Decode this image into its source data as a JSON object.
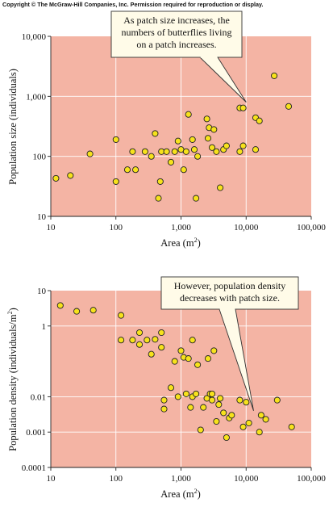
{
  "copyright": "Copyright © The McGraw-Hill Companies, Inc. Permission required for reproduction or display.",
  "chart_data": [
    {
      "type": "scatter",
      "title": "",
      "xlabel": "Area (m²)",
      "xlabel_parts": [
        "Area (m",
        "2",
        ")"
      ],
      "ylabel": "Population size (individuals)",
      "xscale": "log",
      "yscale": "log",
      "xlim": [
        10,
        100000
      ],
      "ylim": [
        10,
        10000
      ],
      "xticks": [
        "10",
        "100",
        "1,000",
        "10,000",
        "100,000"
      ],
      "yticks": [
        "10",
        "100",
        "1,000",
        "10,000"
      ],
      "grid": true,
      "annotation": {
        "lines": [
          "As patch size increases, the",
          "numbers of butterflies living",
          "on a patch increases."
        ],
        "pointer_to": [
          10000,
          800
        ]
      },
      "points": [
        [
          12,
          43
        ],
        [
          20,
          48
        ],
        [
          40,
          110
        ],
        [
          100,
          38
        ],
        [
          100,
          190
        ],
        [
          150,
          60
        ],
        [
          180,
          120
        ],
        [
          200,
          60
        ],
        [
          280,
          120
        ],
        [
          350,
          100
        ],
        [
          400,
          240
        ],
        [
          450,
          20
        ],
        [
          480,
          38
        ],
        [
          500,
          120
        ],
        [
          600,
          120
        ],
        [
          700,
          80
        ],
        [
          800,
          120
        ],
        [
          900,
          180
        ],
        [
          1000,
          130
        ],
        [
          1100,
          60
        ],
        [
          1200,
          120
        ],
        [
          1300,
          500
        ],
        [
          1500,
          190
        ],
        [
          1600,
          130
        ],
        [
          1700,
          20
        ],
        [
          1800,
          100
        ],
        [
          2500,
          420
        ],
        [
          2600,
          200
        ],
        [
          2700,
          300
        ],
        [
          3000,
          140
        ],
        [
          3200,
          280
        ],
        [
          3500,
          120
        ],
        [
          4000,
          30
        ],
        [
          4500,
          130
        ],
        [
          5000,
          150
        ],
        [
          8000,
          640
        ],
        [
          8000,
          120
        ],
        [
          9000,
          640
        ],
        [
          9000,
          150
        ],
        [
          14000,
          440
        ],
        [
          14000,
          130
        ],
        [
          16000,
          390
        ],
        [
          27000,
          2200
        ],
        [
          45000,
          680
        ]
      ]
    },
    {
      "type": "scatter",
      "title": "",
      "xlabel": "Area (m²)",
      "xlabel_parts": [
        "Area (m",
        "2",
        ")"
      ],
      "ylabel": "Population density (individuals/m²)",
      "ylabel_parts": [
        "Population density (individuals/m",
        "2",
        ")"
      ],
      "xscale": "log",
      "yscale": "log",
      "xlim": [
        10,
        100000
      ],
      "ylim": [
        0.0001,
        10
      ],
      "xticks": [
        "10",
        "100",
        "1,000",
        "10,000",
        "100,000"
      ],
      "yticks": [
        "0.0001",
        "0.001",
        "0.01",
        "1",
        "10"
      ],
      "grid": true,
      "annotation": {
        "lines": [
          "However, population density",
          "decreases with patch size."
        ],
        "pointer_to": [
          13000,
          0.004
        ]
      },
      "points": [
        [
          14,
          3.8
        ],
        [
          25,
          2.6
        ],
        [
          45,
          2.8
        ],
        [
          120,
          2.0
        ],
        [
          120,
          0.4
        ],
        [
          180,
          0.4
        ],
        [
          230,
          0.3
        ],
        [
          230,
          0.65
        ],
        [
          300,
          0.4
        ],
        [
          350,
          0.16
        ],
        [
          400,
          0.42
        ],
        [
          500,
          0.25
        ],
        [
          500,
          0.65
        ],
        [
          550,
          0.0045
        ],
        [
          550,
          0.008
        ],
        [
          700,
          0.018
        ],
        [
          800,
          0.1
        ],
        [
          900,
          0.01
        ],
        [
          1000,
          0.2
        ],
        [
          1100,
          0.13
        ],
        [
          1200,
          0.012
        ],
        [
          1300,
          0.12
        ],
        [
          1400,
          0.005
        ],
        [
          1500,
          0.01
        ],
        [
          1500,
          0.4
        ],
        [
          1700,
          0.012
        ],
        [
          1800,
          0.08
        ],
        [
          2000,
          0.00115
        ],
        [
          2200,
          0.005
        ],
        [
          2500,
          0.009
        ],
        [
          2600,
          0.12
        ],
        [
          2800,
          0.012
        ],
        [
          3000,
          0.008
        ],
        [
          3000,
          0.012
        ],
        [
          3200,
          0.2
        ],
        [
          3500,
          0.002
        ],
        [
          3800,
          0.006
        ],
        [
          4000,
          0.009
        ],
        [
          4500,
          0.0035
        ],
        [
          5000,
          0.0007
        ],
        [
          5500,
          0.0025
        ],
        [
          6000,
          0.003
        ],
        [
          8000,
          0.008
        ],
        [
          9000,
          0.0014
        ],
        [
          10000,
          0.007
        ],
        [
          11000,
          0.0018
        ],
        [
          16000,
          0.001
        ],
        [
          17000,
          0.003
        ],
        [
          20000,
          0.0023
        ],
        [
          30000,
          0.008
        ],
        [
          50000,
          0.0014
        ]
      ]
    }
  ]
}
